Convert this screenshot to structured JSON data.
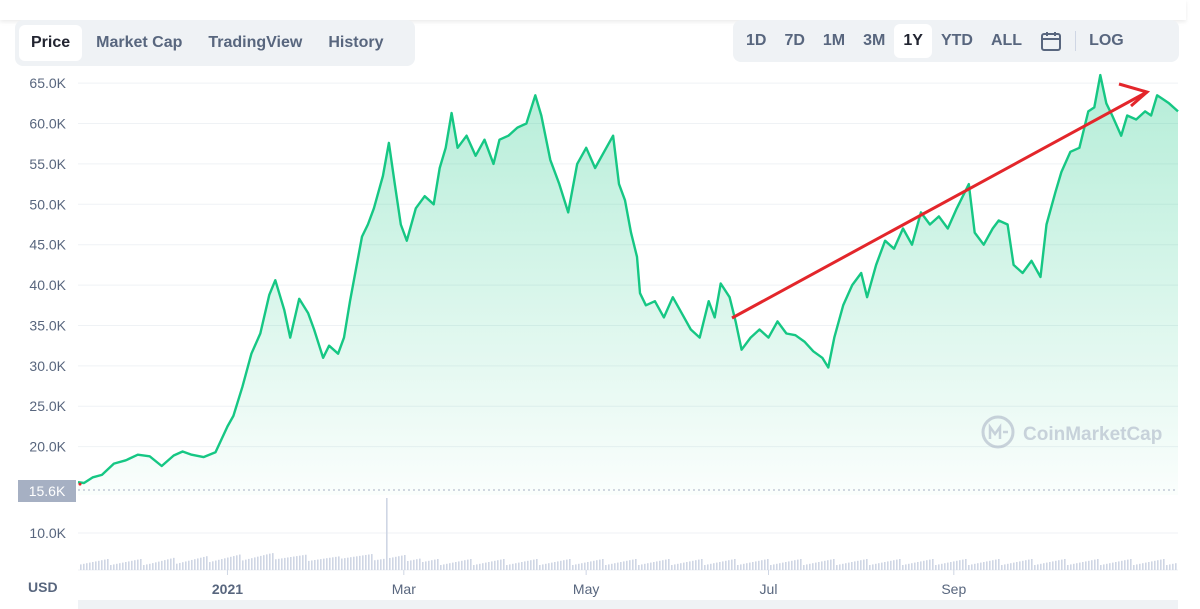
{
  "tabs": [
    "Price",
    "Market Cap",
    "TradingView",
    "History"
  ],
  "active_tab": "Price",
  "ranges": [
    "1D",
    "7D",
    "1M",
    "3M",
    "1Y",
    "YTD",
    "ALL"
  ],
  "active_range": "1Y",
  "log_label": "LOG",
  "icons": {
    "calendar": "calendar-icon",
    "watermark_logo": "coinmarketcap-logo-icon"
  },
  "watermark": "CoinMarketCap",
  "colors": {
    "line": "#16c784",
    "fill_top": "#16c784",
    "arrow": "#e3262b",
    "current_badge": "#a6b0c3",
    "grid": "#eff2f5",
    "text": "#58667e"
  },
  "chart_data": {
    "type": "area",
    "y_unit_label": "USD",
    "current_price_label": "15.6K",
    "y_tick_labels": [
      "10.0K",
      "20.0K",
      "25.0K",
      "30.0K",
      "35.0K",
      "40.0K",
      "45.0K",
      "50.0K",
      "55.0K",
      "60.0K",
      "65.0K"
    ],
    "y_tick_values": [
      10000,
      20000,
      25000,
      30000,
      35000,
      40000,
      45000,
      50000,
      55000,
      60000,
      65000
    ],
    "x_tick_labels": [
      "2021",
      "Mar",
      "May",
      "Jul",
      "Sep"
    ],
    "x_tick_dates": [
      "2021-01-01",
      "2021-03-01",
      "2021-05-01",
      "2021-07-01",
      "2021-09-01"
    ],
    "x_range": [
      "2020-11-12",
      "2021-11-15"
    ],
    "ylim": [
      15000,
      67000
    ],
    "series": [
      {
        "points": [
          [
            "2020-11-12",
            15600
          ],
          [
            "2020-11-14",
            15500
          ],
          [
            "2020-11-17",
            16200
          ],
          [
            "2020-11-20",
            16500
          ],
          [
            "2020-11-24",
            17900
          ],
          [
            "2020-11-28",
            18300
          ],
          [
            "2020-12-02",
            19000
          ],
          [
            "2020-12-06",
            18800
          ],
          [
            "2020-12-10",
            17600
          ],
          [
            "2020-12-14",
            18900
          ],
          [
            "2020-12-17",
            19400
          ],
          [
            "2020-12-20",
            19000
          ],
          [
            "2020-12-24",
            18700
          ],
          [
            "2020-12-28",
            19300
          ],
          [
            "2021-01-01",
            22500
          ],
          [
            "2021-01-03",
            23800
          ],
          [
            "2021-01-06",
            27400
          ],
          [
            "2021-01-09",
            31500
          ],
          [
            "2021-01-12",
            34000
          ],
          [
            "2021-01-15",
            38800
          ],
          [
            "2021-01-17",
            40600
          ],
          [
            "2021-01-20",
            36900
          ],
          [
            "2021-01-22",
            33500
          ],
          [
            "2021-01-25",
            38300
          ],
          [
            "2021-01-28",
            36500
          ],
          [
            "2021-01-30",
            34500
          ],
          [
            "2021-02-02",
            31000
          ],
          [
            "2021-02-04",
            32500
          ],
          [
            "2021-02-07",
            31500
          ],
          [
            "2021-02-09",
            33500
          ],
          [
            "2021-02-11",
            38000
          ],
          [
            "2021-02-13",
            42000
          ],
          [
            "2021-02-15",
            46000
          ],
          [
            "2021-02-17",
            47500
          ],
          [
            "2021-02-19",
            49500
          ],
          [
            "2021-02-22",
            53500
          ],
          [
            "2021-02-24",
            57600
          ],
          [
            "2021-02-26",
            52500
          ],
          [
            "2021-02-28",
            47500
          ],
          [
            "2021-03-02",
            45500
          ],
          [
            "2021-03-05",
            49500
          ],
          [
            "2021-03-08",
            51000
          ],
          [
            "2021-03-11",
            50000
          ],
          [
            "2021-03-13",
            54500
          ],
          [
            "2021-03-15",
            57000
          ],
          [
            "2021-03-17",
            61300
          ],
          [
            "2021-03-19",
            57000
          ],
          [
            "2021-03-22",
            58500
          ],
          [
            "2021-03-25",
            56000
          ],
          [
            "2021-03-28",
            58000
          ],
          [
            "2021-03-31",
            55000
          ],
          [
            "2021-04-02",
            58000
          ],
          [
            "2021-04-05",
            58500
          ],
          [
            "2021-04-08",
            59500
          ],
          [
            "2021-04-11",
            60000
          ],
          [
            "2021-04-14",
            63500
          ],
          [
            "2021-04-16",
            61000
          ],
          [
            "2021-04-19",
            55500
          ],
          [
            "2021-04-22",
            52500
          ],
          [
            "2021-04-25",
            49000
          ],
          [
            "2021-04-28",
            55000
          ],
          [
            "2021-05-01",
            57000
          ],
          [
            "2021-05-04",
            54500
          ],
          [
            "2021-05-07",
            56500
          ],
          [
            "2021-05-10",
            58500
          ],
          [
            "2021-05-12",
            52500
          ],
          [
            "2021-05-14",
            50500
          ],
          [
            "2021-05-16",
            46500
          ],
          [
            "2021-05-18",
            43500
          ],
          [
            "2021-05-19",
            39000
          ],
          [
            "2021-05-21",
            37500
          ],
          [
            "2021-05-24",
            38000
          ],
          [
            "2021-05-27",
            36000
          ],
          [
            "2021-05-30",
            38500
          ],
          [
            "2021-06-02",
            36500
          ],
          [
            "2021-06-05",
            34500
          ],
          [
            "2021-06-08",
            33500
          ],
          [
            "2021-06-11",
            38000
          ],
          [
            "2021-06-13",
            36000
          ],
          [
            "2021-06-15",
            40200
          ],
          [
            "2021-06-18",
            38500
          ],
          [
            "2021-06-20",
            35500
          ],
          [
            "2021-06-22",
            32000
          ],
          [
            "2021-06-25",
            33500
          ],
          [
            "2021-06-28",
            34500
          ],
          [
            "2021-07-01",
            33500
          ],
          [
            "2021-07-04",
            35500
          ],
          [
            "2021-07-07",
            34000
          ],
          [
            "2021-07-10",
            33800
          ],
          [
            "2021-07-13",
            33000
          ],
          [
            "2021-07-16",
            31800
          ],
          [
            "2021-07-19",
            31000
          ],
          [
            "2021-07-21",
            29800
          ],
          [
            "2021-07-23",
            33500
          ],
          [
            "2021-07-26",
            37500
          ],
          [
            "2021-07-29",
            40000
          ],
          [
            "2021-08-01",
            41500
          ],
          [
            "2021-08-03",
            38500
          ],
          [
            "2021-08-06",
            42500
          ],
          [
            "2021-08-09",
            45500
          ],
          [
            "2021-08-12",
            44500
          ],
          [
            "2021-08-15",
            47000
          ],
          [
            "2021-08-18",
            45000
          ],
          [
            "2021-08-21",
            49000
          ],
          [
            "2021-08-24",
            47500
          ],
          [
            "2021-08-27",
            48500
          ],
          [
            "2021-08-30",
            47000
          ],
          [
            "2021-09-02",
            49500
          ],
          [
            "2021-09-06",
            52500
          ],
          [
            "2021-09-08",
            46500
          ],
          [
            "2021-09-11",
            45000
          ],
          [
            "2021-09-14",
            47000
          ],
          [
            "2021-09-16",
            48000
          ],
          [
            "2021-09-19",
            47500
          ],
          [
            "2021-09-21",
            42500
          ],
          [
            "2021-09-24",
            41500
          ],
          [
            "2021-09-27",
            43000
          ],
          [
            "2021-09-30",
            41000
          ],
          [
            "2021-10-02",
            47500
          ],
          [
            "2021-10-05",
            51500
          ],
          [
            "2021-10-07",
            54000
          ],
          [
            "2021-10-10",
            56500
          ],
          [
            "2021-10-13",
            57000
          ],
          [
            "2021-10-16",
            61500
          ],
          [
            "2021-10-18",
            62000
          ],
          [
            "2021-10-20",
            66000
          ],
          [
            "2021-10-22",
            62500
          ],
          [
            "2021-10-24",
            61000
          ],
          [
            "2021-10-27",
            58500
          ],
          [
            "2021-10-29",
            61000
          ],
          [
            "2021-11-01",
            60500
          ],
          [
            "2021-11-04",
            61500
          ],
          [
            "2021-11-06",
            61000
          ],
          [
            "2021-11-08",
            63500
          ],
          [
            "2021-11-10",
            63000
          ],
          [
            "2021-11-12",
            62500
          ],
          [
            "2021-11-15",
            61500
          ]
        ]
      }
    ],
    "volume_series": {
      "dates": [
        "2020-11-12",
        "2021-02-23",
        "2021-11-15"
      ],
      "values": [
        1,
        10,
        1
      ],
      "note_visible": false
    }
  }
}
